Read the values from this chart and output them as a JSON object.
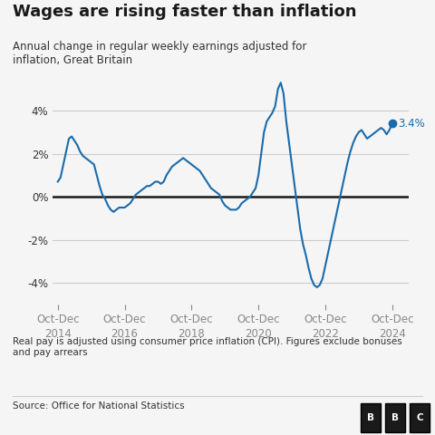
{
  "title": "Wages are rising faster than inflation",
  "subtitle": "Annual change in regular weekly earnings adjusted for\ninflation, Great Britain",
  "footnote": "Real pay is adjusted using consumer price inflation (CPI). Figures exclude bonuses\nand pay arrears",
  "source": "Source: Office for National Statistics",
  "line_color": "#1a6bab",
  "zero_line_color": "#1a1a1a",
  "background_color": "#f5f5f5",
  "last_label": "3.4%",
  "x_tick_labels": [
    "Oct-Dec\n2014",
    "Oct-Dec\n2016",
    "Oct-Dec\n2018",
    "Oct-Dec\n2020",
    "Oct-Dec\n2022",
    "Oct-Dec\n2024"
  ],
  "x_tick_positions": [
    0,
    24,
    48,
    72,
    96,
    120
  ],
  "ylim": [
    -5,
    5.5
  ],
  "yticks": [
    -4,
    -2,
    0,
    2,
    4
  ],
  "data": [
    0.7,
    0.9,
    1.5,
    2.1,
    2.7,
    2.8,
    2.6,
    2.4,
    2.1,
    1.9,
    1.8,
    1.7,
    1.6,
    1.5,
    1.0,
    0.5,
    0.1,
    -0.1,
    -0.4,
    -0.6,
    -0.7,
    -0.6,
    -0.5,
    -0.5,
    -0.5,
    -0.4,
    -0.3,
    -0.1,
    0.1,
    0.2,
    0.3,
    0.4,
    0.5,
    0.5,
    0.6,
    0.7,
    0.7,
    0.6,
    0.7,
    1.0,
    1.2,
    1.4,
    1.5,
    1.6,
    1.7,
    1.8,
    1.7,
    1.6,
    1.5,
    1.4,
    1.3,
    1.2,
    1.0,
    0.8,
    0.6,
    0.4,
    0.3,
    0.2,
    0.1,
    -0.2,
    -0.4,
    -0.5,
    -0.6,
    -0.6,
    -0.6,
    -0.5,
    -0.3,
    -0.2,
    -0.1,
    0.0,
    0.2,
    0.4,
    1.0,
    2.0,
    3.0,
    3.5,
    3.7,
    3.9,
    4.2,
    5.0,
    5.3,
    4.8,
    3.5,
    2.5,
    1.5,
    0.5,
    -0.5,
    -1.5,
    -2.2,
    -2.7,
    -3.3,
    -3.8,
    -4.1,
    -4.2,
    -4.1,
    -3.8,
    -3.2,
    -2.6,
    -2.0,
    -1.4,
    -0.8,
    -0.2,
    0.4,
    1.0,
    1.6,
    2.1,
    2.5,
    2.8,
    3.0,
    3.1,
    2.9,
    2.7,
    2.8,
    2.9,
    3.0,
    3.1,
    3.2,
    3.1,
    2.9,
    3.1,
    3.4
  ]
}
